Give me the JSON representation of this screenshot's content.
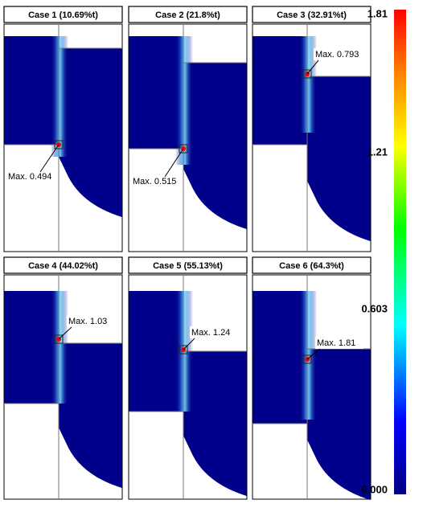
{
  "panels": [
    {
      "title": "Case 1 (10.69%t)",
      "max_label": "Max. 0.494"
    },
    {
      "title": "Case 2 (21.8%t)",
      "max_label": "Max. 0.515"
    },
    {
      "title": "Case 3 (32.91%t)",
      "max_label": "Max. 0.793"
    },
    {
      "title": "Case 4 (44.02%t)",
      "max_label": "Max. 1.03"
    },
    {
      "title": "Case 5 (55.13%t)",
      "max_label": "Max. 1.24"
    },
    {
      "title": "Case 6 (64.3%t)",
      "max_label": "Max. 1.81"
    }
  ],
  "colorbar": {
    "ticks": [
      "1.81",
      "1.21",
      "0.603",
      "0.000"
    ]
  }
}
